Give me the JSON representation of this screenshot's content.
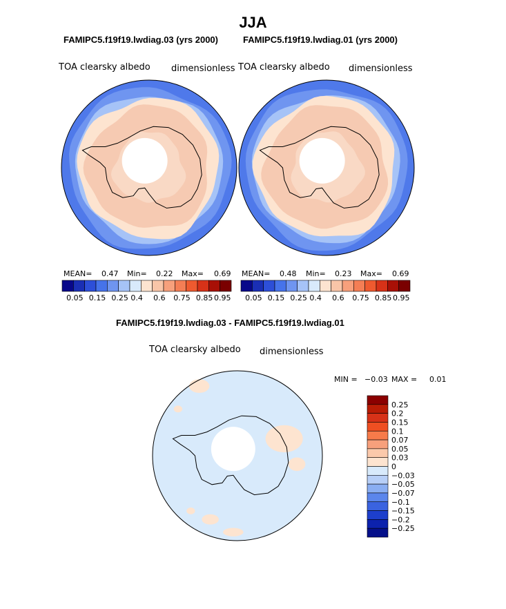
{
  "page": {
    "season": "JJA"
  },
  "chart_data": [
    {
      "type": "heatmap",
      "projection": "south-polar-stereographic",
      "title": "FAMIPC5.f19f19.lwdiag.03 (yrs 2000)",
      "variable": "TOA clearsky albedo",
      "units": "dimensionless",
      "stats": {
        "mean_label": "MEAN=",
        "mean": "0.47",
        "min_label": "Min=",
        "min": "0.22",
        "max_label": "Max=",
        "max": "0.69"
      },
      "zones": [
        {
          "level": 0.225,
          "color": "#4f79ea"
        },
        {
          "level": 0.325,
          "color": "#6f95f0"
        },
        {
          "level": 0.375,
          "color": "#a6c3f7"
        },
        {
          "level": 0.45,
          "color": "#fde4d0"
        },
        {
          "level": 0.56,
          "color": "#f6cab2"
        },
        {
          "level": 0.62,
          "color": "#f9d9c5"
        },
        {
          "level": 0.69,
          "color": "#ffffff"
        }
      ]
    },
    {
      "type": "heatmap",
      "projection": "south-polar-stereographic",
      "title": "FAMIPC5.f19f19.lwdiag.01 (yrs 2000)",
      "variable": "TOA clearsky albedo",
      "units": "dimensionless",
      "stats": {
        "mean_label": "MEAN=",
        "mean": "0.48",
        "min_label": "Min=",
        "min": "0.23",
        "max_label": "Max=",
        "max": "0.69"
      },
      "zones": [
        {
          "level": 0.23,
          "color": "#4f79ea"
        },
        {
          "level": 0.325,
          "color": "#6f95f0"
        },
        {
          "level": 0.375,
          "color": "#a6c3f7"
        },
        {
          "level": 0.45,
          "color": "#fde4d0"
        },
        {
          "level": 0.56,
          "color": "#f6cab2"
        },
        {
          "level": 0.62,
          "color": "#f9d9c5"
        },
        {
          "level": 0.69,
          "color": "#ffffff"
        }
      ]
    },
    {
      "type": "heatmap",
      "projection": "south-polar-stereographic",
      "title": "FAMIPC5.f19f19.lwdiag.03 - FAMIPC5.f19f19.lwdiag.01",
      "variable": "TOA clearsky albedo",
      "units": "dimensionless",
      "stats": {
        "min_label": "MIN =",
        "min": "−0.03",
        "max_label": "MAX =",
        "max": "0.01"
      },
      "base_color": "#d8eafb",
      "positive_color": "#fde4d0"
    }
  ],
  "colorbar_main": {
    "colors": [
      "#08088a",
      "#1a2fb5",
      "#2d4fd8",
      "#4673ea",
      "#6f95f0",
      "#a6c3f7",
      "#d8eafb",
      "#fde4d0",
      "#f8c5a8",
      "#f7a07c",
      "#f47e55",
      "#ee5a2f",
      "#d73218",
      "#a81006",
      "#7a0000"
    ],
    "labels": [
      "0.05",
      "0.15",
      "0.25",
      "0.4",
      "0.6",
      "0.75",
      "0.85",
      "0.95"
    ]
  },
  "colorbar_diff": {
    "colors": [
      "#8b0000",
      "#b91c05",
      "#d73218",
      "#ef4f22",
      "#f77b4a",
      "#f7a07c",
      "#fbc9ab",
      "#fde4d0",
      "#d8eafb",
      "#b7cff7",
      "#8aaef2",
      "#5b86ec",
      "#3a63e0",
      "#1d3fcc",
      "#0c22ad",
      "#05108a"
    ],
    "labels": [
      "0.25",
      "0.2",
      "0.15",
      "0.1",
      "0.07",
      "0.05",
      "0.03",
      "0",
      "−0.03",
      "−0.05",
      "−0.07",
      "−0.1",
      "−0.15",
      "−0.2",
      "−0.25"
    ]
  }
}
